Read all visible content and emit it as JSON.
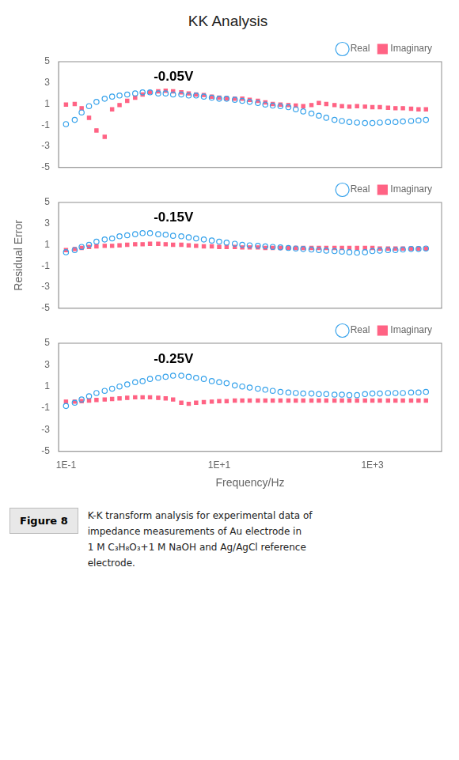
{
  "chart_data": [
    {
      "type": "scatter",
      "title": "KK Analysis",
      "log": "x",
      "grid": false,
      "legend": "upper right",
      "tick_labels": "y",
      "annotations": [
        "-0.05V"
      ],
      "xlim": [
        0.08,
        8000
      ],
      "xticks": [
        {
          "value": 0.1,
          "label": "1E-1"
        },
        {
          "value": 10.0,
          "label": "1E+1"
        },
        {
          "value": 1000.0,
          "label": "1E+3"
        }
      ],
      "ylim": [
        -5,
        5
      ],
      "yticks": [
        -5,
        -3,
        -1,
        1,
        3,
        5
      ],
      "series": [
        {
          "name": "Real",
          "marker": "open_circle",
          "x": [
            0.1,
            0.13,
            0.16,
            0.2,
            0.25,
            0.32,
            0.4,
            0.5,
            0.63,
            0.8,
            1.0,
            1.25,
            1.6,
            2.0,
            2.5,
            3.2,
            4.0,
            5.0,
            6.3,
            8.0,
            10.0,
            12.5,
            16.0,
            20.0,
            25.0,
            32.0,
            40.0,
            50.0,
            63.0,
            80.0,
            100.0,
            125.0,
            160.0,
            200.0,
            250.0,
            320.0,
            400.0,
            500.0,
            630.0,
            800.0,
            1000.0,
            1250.0,
            1600.0,
            2000.0,
            2500.0,
            3200.0,
            4000.0,
            5000.0
          ],
          "values": [
            -0.9,
            -0.5,
            0.2,
            0.8,
            1.2,
            1.5,
            1.7,
            1.8,
            1.9,
            2.0,
            2.1,
            2.1,
            2.0,
            2.0,
            1.9,
            1.9,
            1.8,
            1.8,
            1.7,
            1.6,
            1.5,
            1.5,
            1.4,
            1.3,
            1.2,
            1.1,
            0.95,
            0.85,
            0.8,
            0.7,
            0.5,
            0.3,
            0.1,
            -0.1,
            -0.3,
            -0.5,
            -0.6,
            -0.7,
            -0.75,
            -0.8,
            -0.8,
            -0.75,
            -0.7,
            -0.7,
            -0.65,
            -0.6,
            -0.55,
            -0.5
          ]
        },
        {
          "name": "Imaginary",
          "marker": "filled_square",
          "x": [
            0.1,
            0.13,
            0.16,
            0.2,
            0.25,
            0.32,
            0.4,
            0.5,
            0.63,
            0.8,
            1.0,
            1.25,
            1.6,
            2.0,
            2.5,
            3.2,
            4.0,
            5.0,
            6.3,
            8.0,
            10.0,
            12.5,
            16.0,
            20.0,
            25.0,
            32.0,
            40.0,
            50.0,
            63.0,
            80.0,
            100.0,
            125.0,
            160.0,
            200.0,
            250.0,
            320.0,
            400.0,
            500.0,
            630.0,
            800.0,
            1000.0,
            1250.0,
            1600.0,
            2000.0,
            2500.0,
            3200.0,
            4000.0,
            5000.0
          ],
          "values": [
            0.95,
            1.0,
            0.6,
            -0.3,
            -1.5,
            -2.1,
            0.5,
            0.9,
            1.3,
            1.6,
            1.9,
            2.1,
            2.2,
            2.25,
            2.2,
            2.1,
            2.0,
            1.9,
            1.85,
            1.7,
            1.6,
            1.55,
            1.5,
            1.5,
            1.4,
            1.3,
            1.15,
            1.0,
            0.95,
            0.9,
            0.85,
            0.8,
            0.9,
            1.1,
            1.0,
            0.9,
            0.8,
            0.75,
            0.8,
            0.75,
            0.7,
            0.7,
            0.65,
            0.6,
            0.6,
            0.55,
            0.5,
            0.5
          ]
        }
      ]
    },
    {
      "type": "scatter",
      "ylabel": "Residual Error",
      "log": "x",
      "grid": false,
      "legend": "upper right",
      "tick_labels": "y",
      "annotations": [
        "-0.15V"
      ],
      "xlim": [
        0.08,
        8000
      ],
      "xticks": [
        {
          "value": 0.1,
          "label": "1E-1"
        },
        {
          "value": 10.0,
          "label": "1E+1"
        },
        {
          "value": 1000.0,
          "label": "1E+3"
        }
      ],
      "ylim": [
        -5,
        5
      ],
      "yticks": [
        -5,
        -3,
        -1,
        1,
        3,
        5
      ],
      "series": [
        {
          "name": "Real",
          "marker": "open_circle",
          "x": [
            0.1,
            0.13,
            0.16,
            0.2,
            0.25,
            0.32,
            0.4,
            0.5,
            0.63,
            0.8,
            1.0,
            1.25,
            1.6,
            2.0,
            2.5,
            3.2,
            4.0,
            5.0,
            6.3,
            8.0,
            10.0,
            12.5,
            16.0,
            20.0,
            25.0,
            32.0,
            40.0,
            50.0,
            63.0,
            80.0,
            100.0,
            125.0,
            160.0,
            200.0,
            250.0,
            320.0,
            400.0,
            500.0,
            630.0,
            800.0,
            1000.0,
            1250.0,
            1600.0,
            2000.0,
            2500.0,
            3200.0,
            4000.0,
            5000.0
          ],
          "values": [
            0.3,
            0.5,
            0.8,
            1.0,
            1.3,
            1.5,
            1.6,
            1.8,
            1.9,
            2.0,
            2.1,
            2.1,
            2.0,
            1.95,
            1.85,
            1.8,
            1.7,
            1.6,
            1.5,
            1.4,
            1.3,
            1.2,
            1.1,
            1.0,
            0.95,
            0.9,
            0.85,
            0.8,
            0.75,
            0.7,
            0.65,
            0.6,
            0.55,
            0.5,
            0.45,
            0.4,
            0.35,
            0.3,
            0.25,
            0.3,
            0.4,
            0.45,
            0.5,
            0.5,
            0.55,
            0.6,
            0.6,
            0.65
          ]
        },
        {
          "name": "Imaginary",
          "marker": "filled_square",
          "x": [
            0.1,
            0.13,
            0.16,
            0.2,
            0.25,
            0.32,
            0.4,
            0.5,
            0.63,
            0.8,
            1.0,
            1.25,
            1.6,
            2.0,
            2.5,
            3.2,
            4.0,
            5.0,
            6.3,
            8.0,
            10.0,
            12.5,
            16.0,
            20.0,
            25.0,
            32.0,
            40.0,
            50.0,
            63.0,
            80.0,
            100.0,
            125.0,
            160.0,
            200.0,
            250.0,
            320.0,
            400.0,
            500.0,
            630.0,
            800.0,
            1000.0,
            1250.0,
            1600.0,
            2000.0,
            2500.0,
            3200.0,
            4000.0,
            5000.0
          ],
          "values": [
            0.5,
            0.6,
            0.7,
            0.8,
            0.85,
            0.9,
            0.9,
            0.95,
            1.0,
            1.05,
            1.05,
            1.1,
            1.1,
            1.05,
            1.0,
            1.0,
            0.95,
            0.9,
            0.85,
            0.85,
            0.8,
            0.8,
            0.8,
            0.75,
            0.75,
            0.75,
            0.7,
            0.7,
            0.7,
            0.7,
            0.7,
            0.7,
            0.7,
            0.7,
            0.7,
            0.7,
            0.7,
            0.7,
            0.7,
            0.7,
            0.7,
            0.65,
            0.65,
            0.65,
            0.65,
            0.65,
            0.65,
            0.65
          ]
        }
      ]
    },
    {
      "type": "scatter",
      "xlabel": "Frequency/Hz",
      "log": "x",
      "grid": false,
      "legend": "upper right",
      "annotations": [
        "-0.25V"
      ],
      "xlim": [
        0.08,
        8000
      ],
      "xticks": [
        {
          "value": 0.1,
          "label": "1E-1"
        },
        {
          "value": 10.0,
          "label": "1E+1"
        },
        {
          "value": 1000.0,
          "label": "1E+3"
        }
      ],
      "ylim": [
        -5,
        5
      ],
      "yticks": [
        -5,
        -3,
        -1,
        1,
        3,
        5
      ],
      "series": [
        {
          "name": "Real",
          "marker": "open_circle",
          "x": [
            0.1,
            0.13,
            0.16,
            0.2,
            0.25,
            0.32,
            0.4,
            0.5,
            0.63,
            0.8,
            1.0,
            1.25,
            1.6,
            2.0,
            2.5,
            3.2,
            4.0,
            5.0,
            6.3,
            8.0,
            10.0,
            12.5,
            16.0,
            20.0,
            25.0,
            32.0,
            40.0,
            50.0,
            63.0,
            80.0,
            100.0,
            125.0,
            160.0,
            200.0,
            250.0,
            320.0,
            400.0,
            500.0,
            630.0,
            800.0,
            1000.0,
            1250.0,
            1600.0,
            2000.0,
            2500.0,
            3200.0,
            4000.0,
            5000.0
          ],
          "values": [
            -0.8,
            -0.5,
            -0.2,
            0.1,
            0.4,
            0.6,
            0.8,
            1.0,
            1.2,
            1.4,
            1.5,
            1.7,
            1.8,
            1.9,
            2.0,
            2.0,
            1.9,
            1.8,
            1.7,
            1.5,
            1.4,
            1.3,
            1.1,
            1.0,
            0.9,
            0.8,
            0.7,
            0.6,
            0.5,
            0.45,
            0.4,
            0.35,
            0.35,
            0.3,
            0.3,
            0.25,
            0.25,
            0.2,
            0.2,
            0.3,
            0.35,
            0.35,
            0.4,
            0.4,
            0.4,
            0.45,
            0.45,
            0.5
          ]
        },
        {
          "name": "Imaginary",
          "marker": "filled_square",
          "x": [
            0.1,
            0.13,
            0.16,
            0.2,
            0.25,
            0.32,
            0.4,
            0.5,
            0.63,
            0.8,
            1.0,
            1.25,
            1.6,
            2.0,
            2.5,
            3.2,
            4.0,
            5.0,
            6.3,
            8.0,
            10.0,
            12.5,
            16.0,
            20.0,
            25.0,
            32.0,
            40.0,
            50.0,
            63.0,
            80.0,
            100.0,
            125.0,
            160.0,
            200.0,
            250.0,
            320.0,
            400.0,
            500.0,
            630.0,
            800.0,
            1000.0,
            1250.0,
            1600.0,
            2000.0,
            2500.0,
            3200.0,
            4000.0,
            5000.0
          ],
          "values": [
            -0.4,
            -0.4,
            -0.35,
            -0.3,
            -0.25,
            -0.2,
            -0.15,
            -0.1,
            -0.05,
            0.0,
            0.0,
            0.0,
            -0.05,
            -0.1,
            -0.2,
            -0.5,
            -0.6,
            -0.5,
            -0.45,
            -0.4,
            -0.35,
            -0.35,
            -0.3,
            -0.3,
            -0.3,
            -0.3,
            -0.3,
            -0.3,
            -0.3,
            -0.3,
            -0.3,
            -0.3,
            -0.3,
            -0.3,
            -0.3,
            -0.3,
            -0.3,
            -0.3,
            -0.3,
            -0.3,
            -0.3,
            -0.3,
            -0.3,
            -0.3,
            -0.3,
            -0.3,
            -0.3,
            -0.3
          ]
        }
      ]
    }
  ],
  "caption": {
    "label": "Figure 8",
    "lines": [
      "K-K transform analysis for experimental data of",
      "impedance measurements of Au electrode in",
      "1 M C₃H₈O₃+1 M NaOH and Ag/AgCl reference",
      "electrode."
    ]
  }
}
